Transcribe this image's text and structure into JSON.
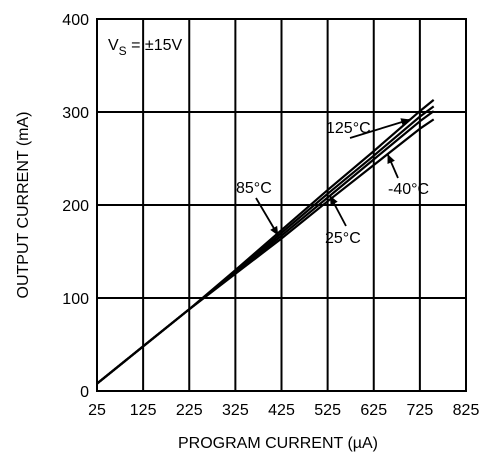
{
  "chart_data": {
    "type": "line",
    "xlabel": "PROGRAM CURRENT (µA)",
    "ylabel": "OUTPUT CURRENT (mA)",
    "xlim": [
      25,
      825
    ],
    "ylim": [
      0,
      400
    ],
    "x_ticks": [
      25,
      125,
      225,
      325,
      425,
      525,
      625,
      725,
      825
    ],
    "y_ticks": [
      0,
      100,
      200,
      300,
      400
    ],
    "grid": true,
    "legend": "none",
    "annotation_main": "V",
    "annotation_sub": "S",
    "annotation_rest": " = ±15V",
    "series": [
      {
        "name": "125°C",
        "x": [
          25,
          125,
          225,
          325,
          425,
          525,
          625,
          725,
          755
        ],
        "y": [
          8,
          48,
          88,
          130,
          173,
          216,
          258,
          301,
          313
        ]
      },
      {
        "name": "85°C",
        "x": [
          25,
          125,
          225,
          325,
          425,
          525,
          625,
          725,
          755
        ],
        "y": [
          8,
          48,
          88,
          128,
          170,
          212,
          253,
          295,
          306
        ]
      },
      {
        "name": "25°C",
        "x": [
          25,
          125,
          225,
          325,
          425,
          525,
          625,
          725,
          755
        ],
        "y": [
          8,
          48,
          88,
          127,
          167,
          208,
          249,
          290,
          301
        ]
      },
      {
        "name": "-40°C",
        "x": [
          25,
          125,
          225,
          325,
          425,
          525,
          625,
          725,
          755
        ],
        "y": [
          8,
          48,
          88,
          126,
          164,
          204,
          243,
          282,
          292
        ]
      }
    ]
  }
}
